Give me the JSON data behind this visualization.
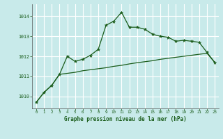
{
  "xlabel": "Graphe pression niveau de la mer (hPa)",
  "bg_color": "#c8eaea",
  "grid_color": "#ffffff",
  "line_color": "#1a5c1a",
  "ylim": [
    1009.4,
    1014.6
  ],
  "xlim": [
    -0.5,
    23.5
  ],
  "yticks": [
    1010,
    1011,
    1012,
    1013,
    1014
  ],
  "xticks": [
    0,
    1,
    2,
    3,
    4,
    5,
    6,
    7,
    8,
    9,
    10,
    11,
    12,
    13,
    14,
    15,
    16,
    17,
    18,
    19,
    20,
    21,
    22,
    23
  ],
  "series1_x": [
    0,
    1,
    2,
    3,
    4,
    5,
    6,
    7,
    8,
    9,
    10,
    11,
    12,
    13,
    14,
    15,
    16,
    17,
    18,
    19,
    20,
    21,
    22,
    23
  ],
  "series1_y": [
    1009.7,
    1010.2,
    1010.55,
    1011.1,
    1012.0,
    1011.75,
    1011.85,
    1012.05,
    1012.35,
    1013.55,
    1013.75,
    1014.2,
    1013.45,
    1013.45,
    1013.35,
    1013.1,
    1013.0,
    1012.95,
    1012.75,
    1012.8,
    1012.75,
    1012.7,
    1012.2,
    1011.7
  ],
  "series2_x": [
    0,
    1,
    2,
    3,
    4,
    5,
    6,
    7,
    8,
    9,
    10,
    11,
    12,
    13,
    14,
    15,
    16,
    17,
    18,
    19,
    20,
    21,
    22,
    23
  ],
  "series2_y": [
    1009.7,
    1010.2,
    1010.55,
    1011.1,
    1011.15,
    1011.2,
    1011.28,
    1011.33,
    1011.38,
    1011.43,
    1011.5,
    1011.55,
    1011.62,
    1011.68,
    1011.73,
    1011.78,
    1011.85,
    1011.9,
    1011.95,
    1012.0,
    1012.05,
    1012.1,
    1012.15,
    1011.7
  ]
}
